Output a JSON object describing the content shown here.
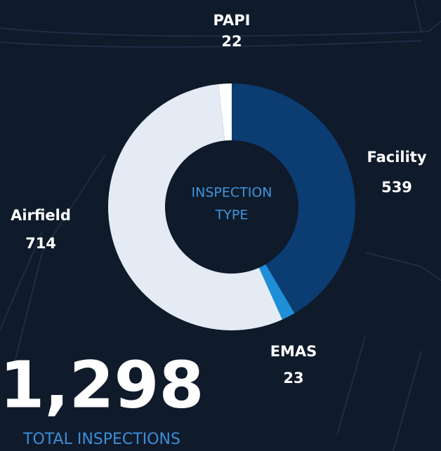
{
  "chart_data": {
    "type": "donut",
    "center_text": [
      "INSPECTION",
      "TYPE"
    ],
    "categories": [
      "PAPI",
      "Facility",
      "EMAS",
      "Airfield"
    ],
    "values": [
      22,
      539,
      23,
      714
    ],
    "colors": [
      "#ffffff",
      "#0b3c72",
      "#1e8ed6",
      "#e4ebf4"
    ],
    "total": "1,298",
    "total_caption": "TOTAL INSPECTIONS"
  }
}
